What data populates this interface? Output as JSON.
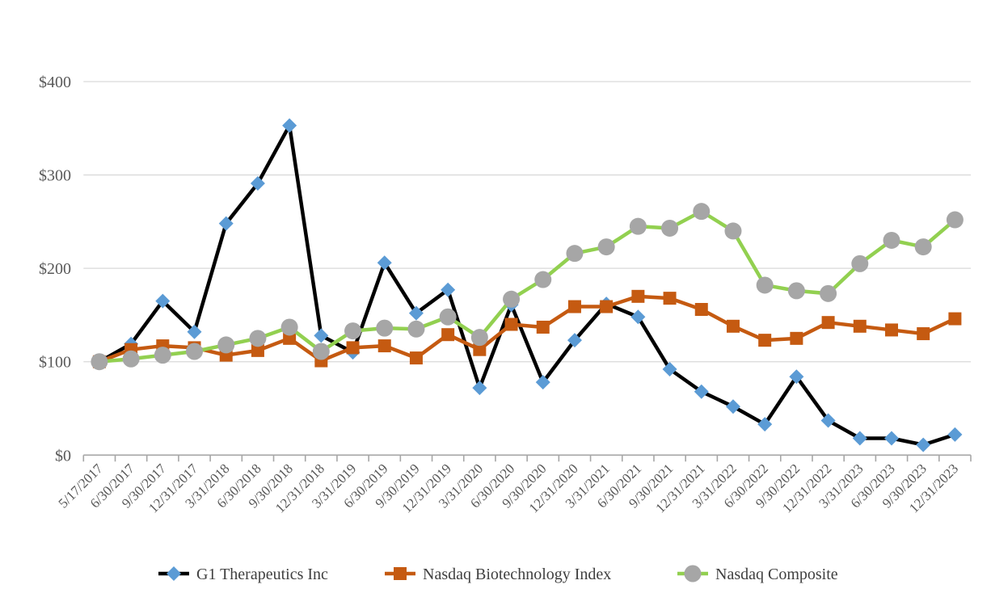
{
  "chart_data": {
    "type": "line",
    "title": "",
    "x_categories": [
      "5/17/2017",
      "6/30/2017",
      "9/30/2017",
      "12/31/2017",
      "3/31/2018",
      "6/30/2018",
      "9/30/2018",
      "12/31/2018",
      "3/31/2019",
      "6/30/2019",
      "9/30/2019",
      "12/31/2019",
      "3/31/2020",
      "6/30/2020",
      "9/30/2020",
      "12/31/2020",
      "3/31/2021",
      "6/30/2021",
      "9/30/2021",
      "12/31/2021",
      "3/31/2022",
      "6/30/2022",
      "9/30/2022",
      "12/31/2022",
      "3/31/2023",
      "6/30/2023",
      "9/30/2023",
      "12/31/2023"
    ],
    "series": [
      {
        "name": "G1 Therapeutics Inc",
        "line_color": "#000000",
        "marker": "diamond",
        "marker_color": "#5B9BD5",
        "values": [
          100,
          119,
          165,
          132,
          248,
          291,
          353,
          128,
          110,
          206,
          152,
          177,
          72,
          161,
          78,
          123,
          162,
          148,
          92,
          68,
          52,
          33,
          84,
          37,
          18,
          18,
          11,
          22
        ]
      },
      {
        "name": "Nasdaq Biotechnology Index",
        "line_color": "#C55A11",
        "marker": "square",
        "marker_color": "#C55A11",
        "values": [
          100,
          113,
          117,
          115,
          107,
          112,
          125,
          101,
          115,
          117,
          104,
          129,
          113,
          140,
          137,
          159,
          159,
          170,
          168,
          156,
          138,
          123,
          125,
          142,
          138,
          134,
          130,
          146
        ]
      },
      {
        "name": "Nasdaq Composite",
        "line_color": "#92D050",
        "marker": "circle",
        "marker_color": "#A6A6A6",
        "values": [
          100,
          103,
          107,
          111,
          118,
          125,
          137,
          111,
          133,
          136,
          135,
          148,
          126,
          167,
          188,
          216,
          223,
          245,
          243,
          261,
          240,
          182,
          176,
          173,
          205,
          230,
          223,
          252
        ]
      }
    ],
    "y_axis": {
      "tick_labels": [
        "$0",
        "$100",
        "$200",
        "$300",
        "$400"
      ],
      "tick_values": [
        0,
        100,
        200,
        300,
        400
      ],
      "min": 0,
      "max": 400,
      "currency_prefix": "$"
    },
    "grid": true,
    "legend_position": "bottom"
  },
  "colors": {
    "background": "#FFFFFF",
    "gridline": "#D9D9D9",
    "axis_line": "#A6A6A6",
    "axis_label": "#595959",
    "legend_text": "#404040"
  }
}
